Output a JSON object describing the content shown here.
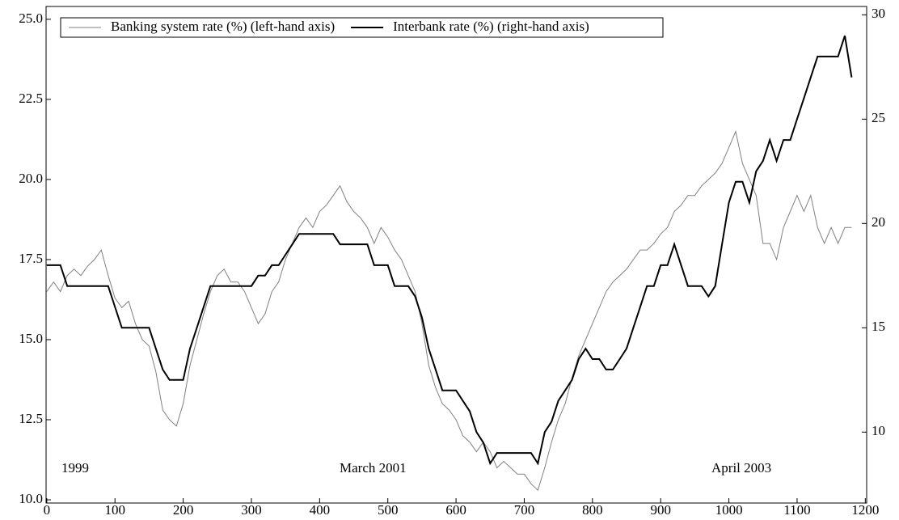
{
  "chart_data": {
    "type": "line",
    "annotations": [
      "1999",
      "March 2001",
      "April 2003"
    ],
    "legend": "upper left",
    "x": [
      0,
      10,
      20,
      30,
      40,
      50,
      60,
      70,
      80,
      90,
      100,
      110,
      120,
      130,
      140,
      150,
      160,
      170,
      180,
      190,
      200,
      210,
      220,
      230,
      240,
      250,
      260,
      270,
      280,
      290,
      300,
      310,
      320,
      330,
      340,
      350,
      360,
      370,
      380,
      390,
      400,
      410,
      420,
      430,
      440,
      450,
      460,
      470,
      480,
      490,
      500,
      510,
      520,
      530,
      540,
      550,
      560,
      570,
      580,
      590,
      600,
      610,
      620,
      630,
      640,
      650,
      660,
      670,
      680,
      690,
      700,
      710,
      720,
      730,
      740,
      750,
      760,
      770,
      780,
      790,
      800,
      810,
      820,
      830,
      840,
      850,
      860,
      870,
      880,
      890,
      900,
      910,
      920,
      930,
      940,
      950,
      960,
      970,
      980,
      990,
      1000,
      1010,
      1020,
      1030,
      1040,
      1050,
      1060,
      1070,
      1080,
      1090,
      1100,
      1110,
      1120,
      1130,
      1140,
      1150,
      1160,
      1170,
      1180
    ],
    "series": [
      {
        "name": "Banking system rate (%) (left-hand axis)",
        "color": "#808080",
        "axis": "y",
        "values": [
          16.5,
          16.8,
          16.5,
          17.0,
          17.2,
          17.0,
          17.3,
          17.5,
          17.8,
          17.0,
          16.3,
          16.0,
          16.2,
          15.5,
          15.0,
          14.8,
          14.0,
          12.8,
          12.5,
          12.3,
          13.0,
          14.2,
          15.0,
          15.8,
          16.5,
          17.0,
          17.2,
          16.8,
          16.8,
          16.5,
          16.0,
          15.5,
          15.8,
          16.5,
          16.8,
          17.5,
          18.0,
          18.5,
          18.8,
          18.5,
          19.0,
          19.2,
          19.5,
          19.8,
          19.3,
          19.0,
          18.8,
          18.5,
          18.0,
          18.5,
          18.2,
          17.8,
          17.5,
          17.0,
          16.5,
          15.5,
          14.2,
          13.5,
          13.0,
          12.8,
          12.5,
          12.0,
          11.8,
          11.5,
          11.8,
          11.5,
          11.0,
          11.2,
          11.0,
          10.8,
          10.8,
          10.5,
          10.3,
          11.0,
          11.8,
          12.5,
          13.0,
          13.8,
          14.5,
          15.0,
          15.5,
          16.0,
          16.5,
          16.8,
          17.0,
          17.2,
          17.5,
          17.8,
          17.8,
          18.0,
          18.3,
          18.5,
          19.0,
          19.2,
          19.5,
          19.5,
          19.8,
          20.0,
          20.2,
          20.5,
          21.0,
          21.5,
          20.5,
          20.0,
          19.5,
          18.0,
          18.0,
          17.5,
          18.5,
          19.0,
          19.5,
          19.0,
          19.5,
          18.5,
          18.0,
          18.5,
          18.0,
          18.5,
          18.5
        ]
      },
      {
        "name": "Interbank rate (%) (right-hand axis)",
        "color": "#000000",
        "axis": "y2",
        "values": [
          18,
          18,
          18,
          17,
          17,
          17,
          17,
          17,
          17,
          17,
          16,
          15,
          15,
          15,
          15,
          15,
          14,
          13,
          12.5,
          12.5,
          12.5,
          14,
          15,
          16,
          17,
          17,
          17,
          17,
          17,
          17,
          17,
          17.5,
          17.5,
          18,
          18,
          18.5,
          19,
          19.5,
          19.5,
          19.5,
          19.5,
          19.5,
          19.5,
          19,
          19,
          19,
          19,
          19,
          18,
          18,
          18,
          17,
          17,
          17,
          16.5,
          15.5,
          14,
          13,
          12,
          12,
          12,
          11.5,
          11,
          10,
          9.5,
          8.5,
          9,
          9,
          9,
          9,
          9,
          9,
          8.5,
          10,
          10.5,
          11.5,
          12,
          12.5,
          13.5,
          14,
          13.5,
          13.5,
          13,
          13,
          13.5,
          14,
          15,
          16,
          17,
          17,
          18,
          18,
          19,
          18,
          17,
          17,
          17,
          16.5,
          17,
          19,
          21,
          22,
          22,
          21,
          22.5,
          23,
          24,
          23,
          24,
          24,
          25,
          26,
          27,
          28,
          28,
          28,
          28,
          29,
          27
        ]
      }
    ],
    "xlim": [
      -1,
      1202
    ],
    "xticks": [
      0,
      100,
      200,
      300,
      400,
      500,
      600,
      700,
      800,
      900,
      1000,
      1100,
      1200
    ],
    "ylim": [
      9.9,
      25.4
    ],
    "yticks": [
      {
        "value": 10,
        "label": "10.0"
      },
      12.5,
      {
        "value": 15,
        "label": "15.0"
      },
      17.5,
      {
        "value": 20,
        "label": "20.0"
      },
      22.5,
      {
        "value": 25,
        "label": "25.0"
      }
    ],
    "y2lim": [
      6.6,
      30.4
    ],
    "y2ticks": [
      10,
      15,
      20,
      25,
      30
    ]
  }
}
